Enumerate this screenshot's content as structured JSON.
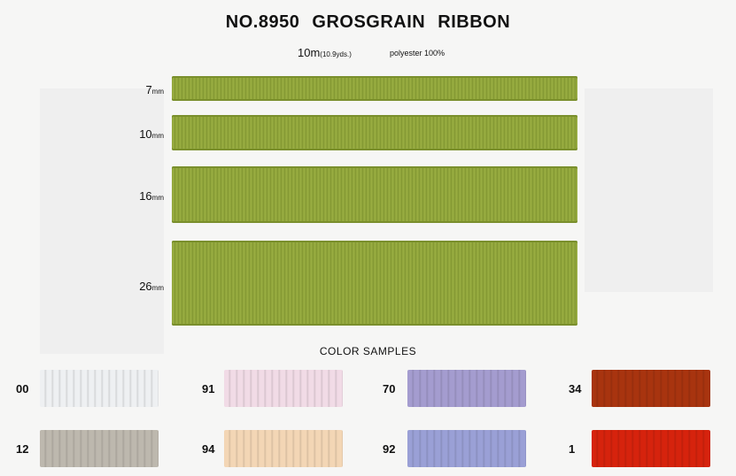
{
  "header": {
    "title": "NO.8950  GROSGRAIN  RIBBON",
    "length": "10m",
    "length_yds": "(10.9yds.)",
    "material": "polyester 100%"
  },
  "ribbons": [
    {
      "size": "7",
      "unit": "mm",
      "color": "#8ea33a"
    },
    {
      "size": "10",
      "unit": "mm",
      "color": "#8ea33a"
    },
    {
      "size": "16",
      "unit": "mm",
      "color": "#8ea33a"
    },
    {
      "size": "26",
      "unit": "mm",
      "color": "#8ea33a"
    }
  ],
  "color_samples": {
    "heading": "COLOR SAMPLES",
    "items": [
      {
        "code": "00",
        "color": "#eef0f2"
      },
      {
        "code": "91",
        "color": "#f1dbe6"
      },
      {
        "code": "70",
        "color": "#a49ccf"
      },
      {
        "code": "34",
        "color": "#a8340f"
      },
      {
        "code": "12",
        "color": "#bdb8ae"
      },
      {
        "code": "94",
        "color": "#f3d6b5"
      },
      {
        "code": "92",
        "color": "#9aa0d6"
      },
      {
        "code": "1",
        "color": "#d6230d"
      }
    ]
  }
}
